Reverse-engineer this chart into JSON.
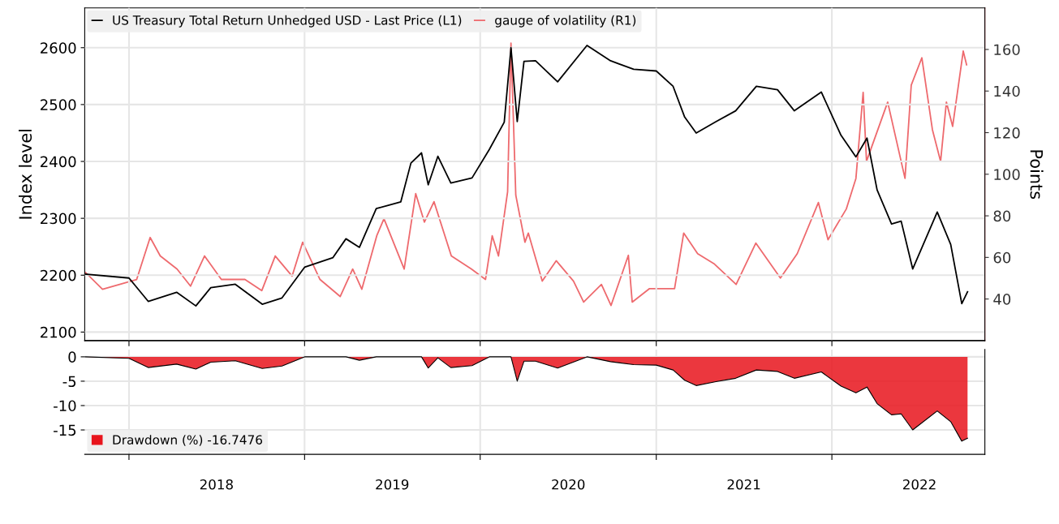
{
  "chart_data": [
    {
      "type": "line",
      "ylabel": "Index level",
      "y2label": "Points",
      "legend": "top left",
      "grid": true,
      "tick_labels": "y",
      "xlim": [
        "2017-10-01",
        "2022-11-15"
      ],
      "xticks": [
        {
          "value": "2018-01-01",
          "label": null
        },
        {
          "value": "2019-01-01",
          "label": null
        },
        {
          "value": "2020-01-01",
          "label": null
        },
        {
          "value": "2021-01-01",
          "label": null
        },
        {
          "value": "2022-01-01",
          "label": null
        }
      ],
      "ylim": [
        2085,
        2670
      ],
      "yticks": [
        2100,
        2200,
        2300,
        2400,
        2500,
        2600
      ],
      "y2lim": [
        20,
        180
      ],
      "y2ticks": [
        40,
        60,
        80,
        100,
        120,
        140,
        160
      ],
      "series": [
        {
          "name": "US Treasury Total Return Unhedged USD - Last Price (L1)",
          "color": "#000000",
          "axis": "y",
          "x": [
            "2017-10-01",
            "2018-01-01",
            "2018-02-10",
            "2018-04-10",
            "2018-05-20",
            "2018-06-20",
            "2018-08-10",
            "2018-10-05",
            "2018-11-15",
            "2019-01-01",
            "2019-03-01",
            "2019-03-28",
            "2019-04-25",
            "2019-05-30",
            "2019-07-20",
            "2019-08-10",
            "2019-09-01",
            "2019-09-15",
            "2019-10-05",
            "2019-11-01",
            "2019-12-15",
            "2020-01-20",
            "2020-02-20",
            "2020-03-05",
            "2020-03-18",
            "2020-04-01",
            "2020-04-25",
            "2020-06-10",
            "2020-08-10",
            "2020-09-28",
            "2020-11-15",
            "2021-01-01",
            "2021-02-05",
            "2021-03-01",
            "2021-03-25",
            "2021-05-05",
            "2021-06-15",
            "2021-07-28",
            "2021-09-10",
            "2021-10-15",
            "2021-12-10",
            "2022-01-20",
            "2022-02-20",
            "2022-03-15",
            "2022-04-05",
            "2022-05-05",
            "2022-05-25",
            "2022-06-18",
            "2022-08-08",
            "2022-09-05",
            "2022-09-28",
            "2022-10-10"
          ],
          "values": [
            2202,
            2195,
            2154,
            2170,
            2146,
            2178,
            2184,
            2149,
            2160,
            2214,
            2231,
            2264,
            2249,
            2317,
            2329,
            2397,
            2415,
            2359,
            2409,
            2362,
            2371,
            2421,
            2469,
            2600,
            2470,
            2576,
            2577,
            2540,
            2604,
            2577,
            2562,
            2559,
            2532,
            2478,
            2450,
            2470,
            2489,
            2532,
            2526,
            2489,
            2522,
            2446,
            2408,
            2441,
            2350,
            2290,
            2295,
            2211,
            2311,
            2254,
            2150,
            2171
          ]
        },
        {
          "name": "gauge of volatility (R1)",
          "color": "#ee6a6e",
          "axis": "y2",
          "x": [
            "2017-10-03",
            "2017-11-07",
            "2018-01-17",
            "2018-02-14",
            "2018-03-07",
            "2018-04-11",
            "2018-05-09",
            "2018-06-07",
            "2018-07-12",
            "2018-08-30",
            "2018-10-04",
            "2018-11-01",
            "2018-12-06",
            "2018-12-28",
            "2019-02-02",
            "2019-03-16",
            "2019-04-11",
            "2019-04-30",
            "2019-05-31",
            "2019-06-15",
            "2019-07-27",
            "2019-08-20",
            "2019-09-07",
            "2019-09-27",
            "2019-11-02",
            "2019-12-14",
            "2020-01-12",
            "2020-01-26",
            "2020-02-08",
            "2020-02-27",
            "2020-03-05",
            "2020-03-15",
            "2020-04-03",
            "2020-04-10",
            "2020-05-09",
            "2020-06-07",
            "2020-07-13",
            "2020-08-03",
            "2020-09-09",
            "2020-09-29",
            "2020-11-04",
            "2020-11-12",
            "2020-12-18",
            "2021-02-08",
            "2021-02-27",
            "2021-03-28",
            "2021-05-02",
            "2021-06-16",
            "2021-07-27",
            "2021-09-16",
            "2021-10-21",
            "2021-12-04",
            "2021-12-24",
            "2022-01-31",
            "2022-02-20",
            "2022-03-07",
            "2022-03-14",
            "2022-04-27",
            "2022-06-02",
            "2022-06-15",
            "2022-07-07",
            "2022-07-29",
            "2022-08-15",
            "2022-08-27",
            "2022-09-09",
            "2022-10-01",
            "2022-10-08"
          ],
          "values": [
            52.7,
            44.7,
            49.4,
            69.6,
            60.7,
            54.4,
            46.2,
            60.7,
            49.4,
            49.4,
            44,
            60.7,
            51,
            67.3,
            49.4,
            41.2,
            54.4,
            44.7,
            70.4,
            78.6,
            54.4,
            90.7,
            77,
            86.8,
            60.7,
            54.4,
            49.4,
            70.4,
            60.7,
            91.6,
            163,
            89.9,
            67.3,
            71.7,
            48.6,
            58.4,
            48.6,
            38.5,
            47,
            36.9,
            61,
            38.5,
            45,
            45,
            71.7,
            61.8,
            56.8,
            47,
            66.9,
            50.1,
            61.8,
            86.4,
            68.5,
            83.3,
            98,
            139.4,
            106.2,
            134.7,
            98,
            142.9,
            156,
            121.4,
            106.2,
            134.7,
            123,
            159.2,
            152.6
          ]
        }
      ]
    },
    {
      "type": "area",
      "legend": "bottom left",
      "grid": true,
      "xlim": [
        "2017-10-01",
        "2022-11-15"
      ],
      "xticks": [
        {
          "value": "2018-01-01",
          "label": null
        },
        {
          "value": "2018-07-02",
          "label": "2018"
        },
        {
          "value": "2019-01-01",
          "label": null
        },
        {
          "value": "2019-07-02",
          "label": "2019"
        },
        {
          "value": "2020-01-01",
          "label": null
        },
        {
          "value": "2020-07-02",
          "label": "2020"
        },
        {
          "value": "2021-01-01",
          "label": null
        },
        {
          "value": "2021-07-02",
          "label": "2021"
        },
        {
          "value": "2022-01-01",
          "label": null
        },
        {
          "value": "2022-07-02",
          "label": "2022"
        }
      ],
      "ylim": [
        -20,
        1.5
      ],
      "yticks": [
        0,
        -5,
        -10,
        -15
      ],
      "series": [
        {
          "name": "Drawdown (%) -16.7476",
          "color": "#e8141c",
          "x": [
            "2017-10-01",
            "2018-01-01",
            "2018-02-10",
            "2018-04-10",
            "2018-05-20",
            "2018-06-20",
            "2018-08-10",
            "2018-10-05",
            "2018-11-15",
            "2019-01-01",
            "2019-03-01",
            "2019-03-28",
            "2019-04-25",
            "2019-05-30",
            "2019-07-20",
            "2019-08-10",
            "2019-09-01",
            "2019-09-15",
            "2019-10-05",
            "2019-11-01",
            "2019-12-15",
            "2020-01-20",
            "2020-02-20",
            "2020-03-05",
            "2020-03-18",
            "2020-04-01",
            "2020-04-25",
            "2020-06-10",
            "2020-08-10",
            "2020-09-28",
            "2020-11-15",
            "2021-01-01",
            "2021-02-05",
            "2021-03-01",
            "2021-03-25",
            "2021-05-05",
            "2021-06-15",
            "2021-07-28",
            "2021-09-10",
            "2021-10-15",
            "2021-12-10",
            "2022-01-20",
            "2022-02-20",
            "2022-03-15",
            "2022-04-05",
            "2022-05-05",
            "2022-05-25",
            "2022-06-18",
            "2022-08-08",
            "2022-09-05",
            "2022-09-28",
            "2022-10-10"
          ],
          "values": [
            0,
            -0.3,
            -2.2,
            -1.5,
            -2.5,
            -1.1,
            -0.8,
            -2.4,
            -1.9,
            0,
            0,
            0,
            -0.7,
            0,
            0,
            0,
            0,
            -2.3,
            -0.2,
            -2.2,
            -1.8,
            0,
            0,
            0,
            -5,
            -0.9,
            -0.9,
            -2.3,
            0,
            -1,
            -1.6,
            -1.7,
            -2.7,
            -4.8,
            -5.9,
            -5.1,
            -4.4,
            -2.7,
            -3,
            -4.4,
            -3.1,
            -6,
            -7.4,
            -6.2,
            -9.6,
            -11.9,
            -11.7,
            -15,
            -11.1,
            -13.3,
            -17.3,
            -16.7
          ]
        }
      ]
    }
  ]
}
